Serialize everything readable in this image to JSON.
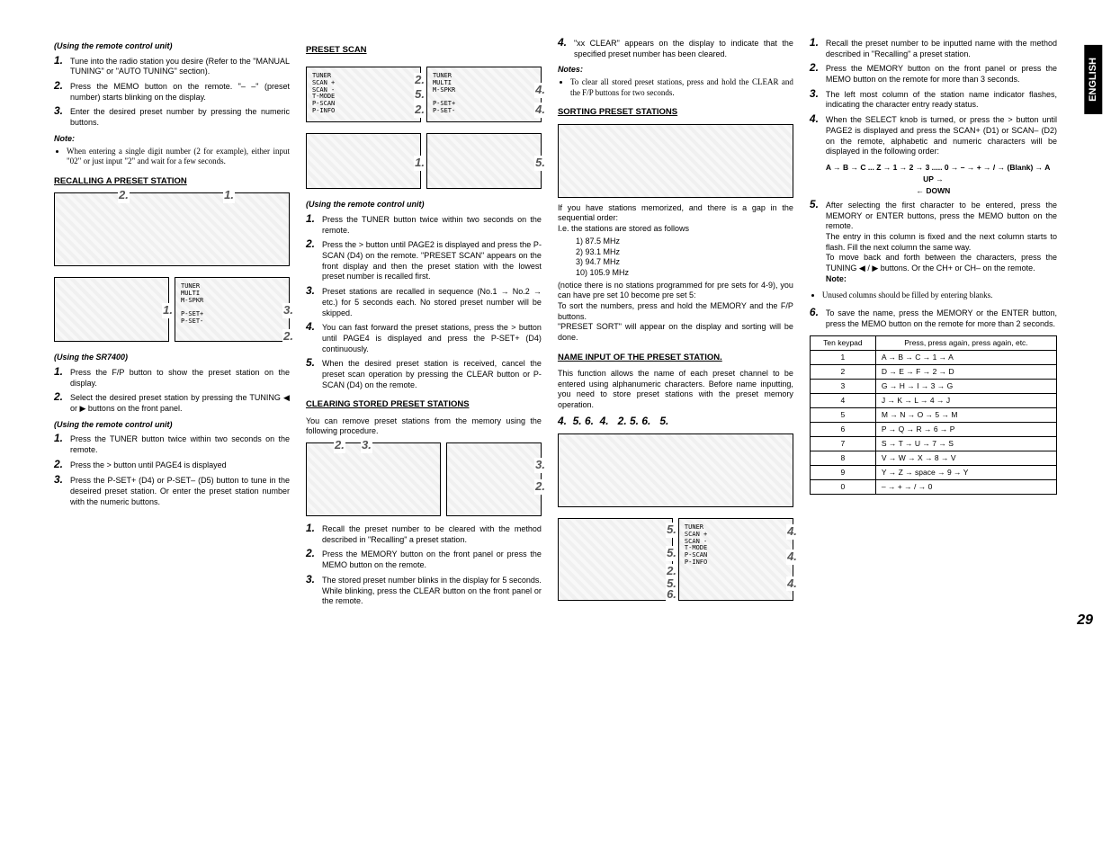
{
  "lang_tab": "ENGLISH",
  "page_number": "29",
  "col1": {
    "sub1": "(Using the remote control unit)",
    "s1_1": "Tune into the radio station you desire (Refer to the \"MANUAL TUNING\" or \"AUTO TUNING\" section).",
    "s1_2": "Press the MEMO button on the remote. \"– –\" (preset number) starts blinking on the display.",
    "s1_3": "Enter the desired preset number by pressing the numeric buttons.",
    "note_head1": "Note:",
    "note1": "When entering a single digit number (2 for example), either input \"02\" or just input \"2\" and wait for a few seconds.",
    "head2": "RECALLING A PRESET STATION",
    "sub2": "(Using the SR7400)",
    "s2_1": "Press the F/P button to show the preset station on the display.",
    "s2_2": "Select the desired preset station by pressing the TUNING ◀ or ▶ buttons on the front panel.",
    "sub3": "(Using the remote control unit)",
    "s3_1": "Press the TUNER button twice within two seconds on the remote.",
    "s3_2": "Press the > button until PAGE4 is displayed",
    "s3_3": "Press the P-SET+ (D4) or P-SET– (D5) button to tune in the deseired preset station. Or enter the preset station number with the numeric buttons."
  },
  "col2": {
    "head1": "PRESET SCAN",
    "sub1": "(Using the remote control unit)",
    "s1_1": "Press the TUNER button twice within two seconds on the remote.",
    "s1_2": "Press the > button until PAGE2 is displayed and press the P-SCAN (D4) on the remote. \"PRESET SCAN\" appears on the front display and then the preset station with the lowest preset number is recalled first.",
    "s1_3": "Preset stations are recalled in sequence (No.1 → No.2 → etc.) for 5 seconds each. No stored preset number will be skipped.",
    "s1_4": "You can fast forward the preset stations, press the > button until PAGE4 is displayed and press the P-SET+ (D4) continuously.",
    "s1_5": "When the desired preset station is received, cancel the preset scan operation by pressing the CLEAR  button or P-SCAN (D4) on the remote.",
    "head2": "CLEARING STORED PRESET STATIONS",
    "intro2": "You can remove preset stations from the memory using the following procedure.",
    "s2_1": "Recall the preset number to be cleared with the method described in \"Recalling\" a preset station.",
    "s2_2": "Press the MEMORY button on the front panel or press the MEMO button on the remote.",
    "s2_3": "The stored preset number blinks in the display for 5 seconds. While blinking, press the CLEAR button on the front panel or the remote."
  },
  "col3": {
    "s1_4": "\"xx CLEAR\" appears on the display to indicate that the specified preset number has been cleared.",
    "notes_head": "Notes:",
    "note1": "To clear all stored preset stations, press and hold the CLEAR and the F/P buttons for two seconds.",
    "head1": "SORTING PRESET STATIONS",
    "intro1": "If you have stations memorized, and there is a gap in the sequential order:",
    "intro1b": "I.e. the stations are stored as follows",
    "li1": "1) 87.5 MHz",
    "li2": "2) 93.1 MHz",
    "li3": "3) 94.7 MHz",
    "li4": "10) 105.9 MHz",
    "p1": "(notice there is no stations programmed for pre sets for 4-9), you can have pre set 10 become pre set 5:",
    "p2": "To sort the numbers, press and hold the MEMORY and the F/P buttons.",
    "p3": "\"PRESET SORT\" will appear on the display and sorting will be done.",
    "head2": "NAME INPUT OF THE PRESET STATION.",
    "intro2": "This function allows the name of each preset channel to be entered using alphanumeric characters. Before name inputting, you need to store preset stations with the preset memory operation."
  },
  "col4": {
    "s1": "Recall the preset number to be inputted name with the method described in \"Recalling\" a preset station.",
    "s2": "Press the MEMORY button on the front panel or press the MEMO button on the remote for more than 3 seconds.",
    "s3": "The left most column of the station name indicator flashes, indicating the character entry ready status.",
    "s4": "When the SELECT knob is turned, or press the > button until PAGE2 is displayed and press the SCAN+ (D1) or SCAN– (D2) on the remote, alphabetic and numeric characters will be displayed in the following order:",
    "charorder": "A → B → C ... Z → 1 → 2 → 3 ..... 0 → –  → + → / → (Blank) → A",
    "up": "UP →",
    "down": "← DOWN",
    "s5a": "After selecting the first character to be entered, press the MEMORY or ENTER buttons, press the MEMO button on the remote.",
    "s5b": "The entry in this column is fixed and the next column starts to flash. Fill the next column the same way.",
    "s5c": "To move back and forth between the characters, press the TUNING ◀ / ▶ buttons. Or the CH+  or CH–  on the remote.",
    "note_head": "Note:",
    "note1": "Unused columns should be filled by entering blanks.",
    "s6": "To save the name, press the MEMORY or the ENTER button, press the MEMO button on the remote for more than 2 seconds.",
    "table": {
      "h1": "Ten keypad",
      "h2": "Press, press again, press again, etc.",
      "rows": [
        [
          "1",
          "A → B → C → 1 → A"
        ],
        [
          "2",
          "D → E → F → 2 → D"
        ],
        [
          "3",
          "G → H → I → 3 → G"
        ],
        [
          "4",
          "J → K → L → 4 → J"
        ],
        [
          "5",
          "M → N → O → 5 → M"
        ],
        [
          "6",
          "P → Q → R → 6 → P"
        ],
        [
          "7",
          "S → T → U → 7 → S"
        ],
        [
          "8",
          "V → W → X → 8 → V"
        ],
        [
          "9",
          "Y → Z → space → 9 → Y"
        ],
        [
          "0",
          "– → + → / → 0"
        ]
      ]
    }
  }
}
